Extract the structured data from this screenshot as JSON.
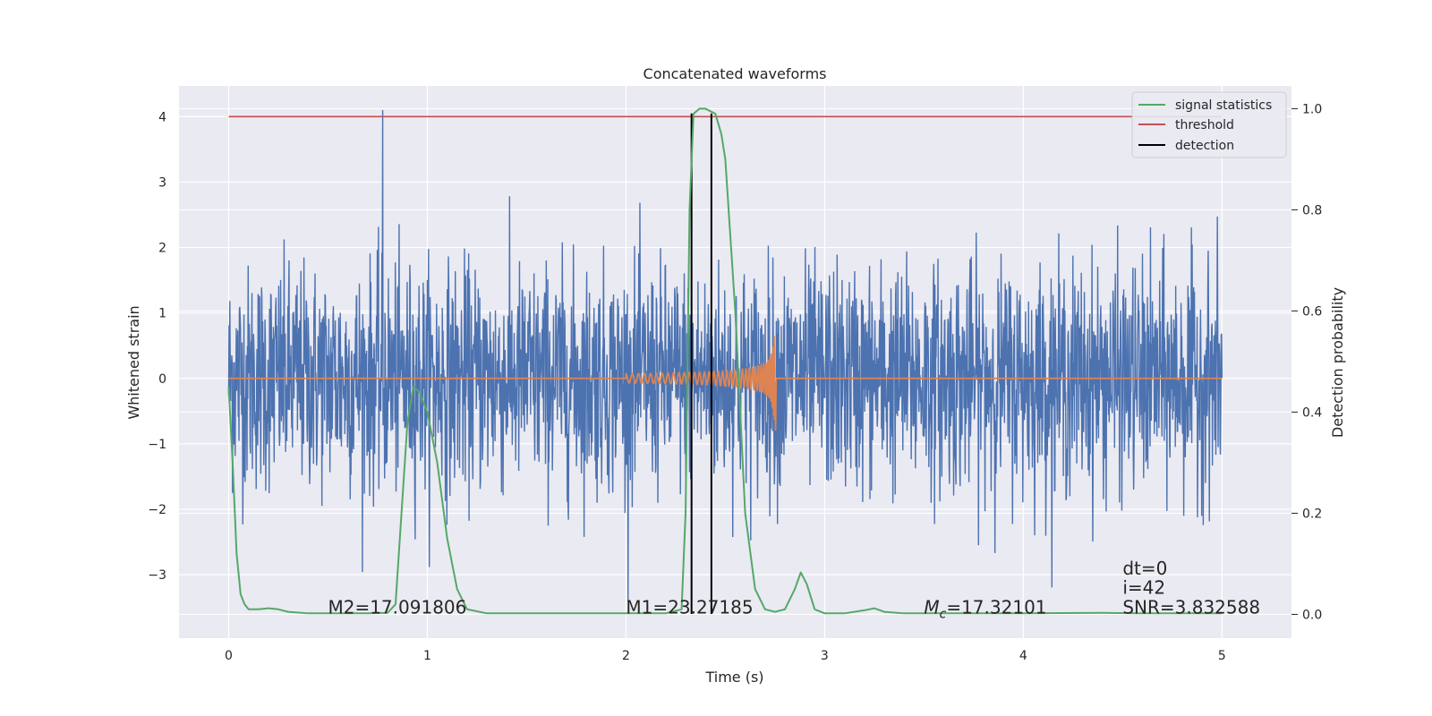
{
  "chart_data": {
    "type": "line",
    "title": "Concatenated waveforms",
    "xlabel": "Time (s)",
    "ylabel_left": "Whitened strain",
    "ylabel_right": "Detection probability",
    "xlim": [
      -0.25,
      5.35
    ],
    "ylim_left": [
      -3.97,
      4.47
    ],
    "ylim_right": [
      -0.047,
      1.045
    ],
    "x_ticks": [
      0,
      1,
      2,
      3,
      4,
      5
    ],
    "y_left_ticks": [
      -3,
      -2,
      -1,
      0,
      1,
      2,
      3,
      4
    ],
    "y_right_ticks": [
      0.0,
      0.2,
      0.4,
      0.6,
      0.8,
      1.0
    ],
    "grid": true,
    "legend_location": "upper right",
    "colors": {
      "noise": "#4c72b0",
      "template": "#dd8452",
      "signal_statistics": "#55a868",
      "threshold": "#c44e52",
      "detection": "#000000",
      "plot_background": "#eaeaf2"
    },
    "legend": [
      {
        "label": "signal statistics",
        "color": "#55a868"
      },
      {
        "label": "threshold",
        "color": "#c44e52"
      },
      {
        "label": "detection",
        "color": "#000000"
      }
    ],
    "noise_series": {
      "axis": "left",
      "x_range": [
        0,
        5
      ],
      "typical_range": [
        -2.2,
        2.4
      ],
      "max": 4.1,
      "min": -3.5
    },
    "template_series": {
      "axis": "left",
      "x_start": 2.0,
      "x_merger": 2.75,
      "peak_amplitude": 0.65
    },
    "threshold": {
      "axis": "left",
      "y": 4.0,
      "x_range": [
        0,
        5
      ]
    },
    "detections": [
      {
        "x": 2.33,
        "y_range_left": [
          -3.6,
          4.05
        ]
      },
      {
        "x": 2.43,
        "y_range_left": [
          -3.6,
          4.05
        ]
      }
    ],
    "signal_statistics": {
      "axis": "right",
      "x": [
        0,
        0.02,
        0.04,
        0.06,
        0.08,
        0.1,
        0.15,
        0.2,
        0.25,
        0.3,
        0.4,
        0.5,
        0.6,
        0.7,
        0.8,
        0.84,
        0.87,
        0.9,
        0.93,
        0.96,
        1.0,
        1.05,
        1.1,
        1.15,
        1.2,
        1.3,
        1.5,
        1.75,
        2.0,
        2.2,
        2.28,
        2.3,
        2.32,
        2.34,
        2.37,
        2.4,
        2.45,
        2.48,
        2.5,
        2.55,
        2.6,
        2.65,
        2.7,
        2.75,
        2.8,
        2.85,
        2.88,
        2.91,
        2.95,
        3.0,
        3.1,
        3.2,
        3.25,
        3.3,
        3.4,
        3.6,
        4.0,
        4.4,
        4.6,
        5.0
      ],
      "y": [
        0.45,
        0.3,
        0.12,
        0.04,
        0.02,
        0.01,
        0.01,
        0.012,
        0.01,
        0.005,
        0.002,
        0.002,
        0.002,
        0.002,
        0.003,
        0.02,
        0.2,
        0.38,
        0.45,
        0.44,
        0.4,
        0.3,
        0.15,
        0.05,
        0.01,
        0.002,
        0.002,
        0.002,
        0.002,
        0.002,
        0.01,
        0.2,
        0.8,
        0.99,
        1.0,
        1.0,
        0.99,
        0.95,
        0.9,
        0.6,
        0.2,
        0.05,
        0.01,
        0.005,
        0.01,
        0.05,
        0.083,
        0.06,
        0.01,
        0.002,
        0.002,
        0.008,
        0.012,
        0.005,
        0.002,
        0.002,
        0.002,
        0.003,
        0.002,
        0.002
      ]
    },
    "annotations": [
      {
        "text": "M2=17.091806",
        "x": 0.5,
        "y": -3.5
      },
      {
        "text": "M1=23.27185",
        "x": 2.0,
        "y": -3.5
      },
      {
        "text": "=17.32101",
        "math_label": "M",
        "math_sub": "c",
        "x": 3.5,
        "y": -3.5
      },
      {
        "text": "dt=0",
        "x": 4.5,
        "y": -2.9
      },
      {
        "text": "i=42",
        "x": 4.5,
        "y": -3.2
      },
      {
        "text": "SNR=3.832588",
        "x": 4.5,
        "y": -3.5
      }
    ]
  }
}
